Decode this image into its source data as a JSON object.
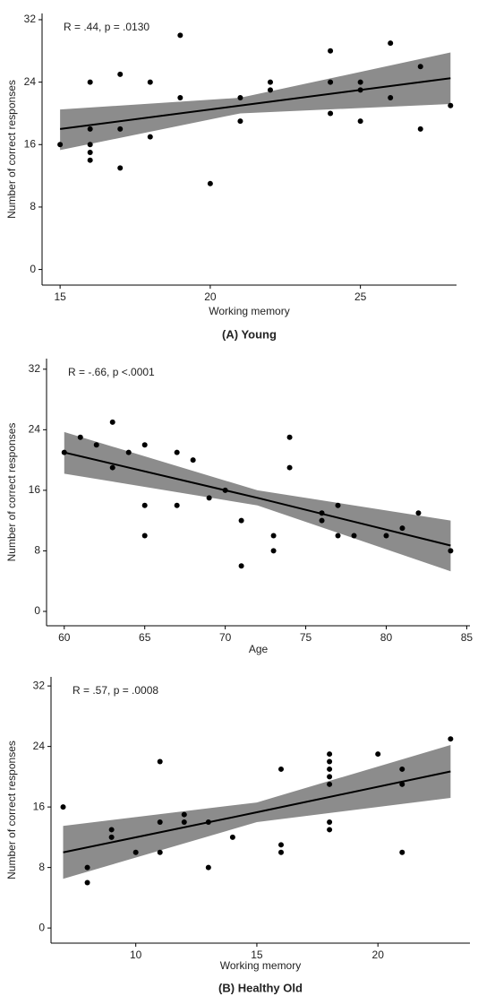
{
  "chart_data": [
    {
      "type": "scatter",
      "annotation": "R = .44, p = .0130",
      "xlabel": "Working memory",
      "ylabel": "Number of correct responses",
      "caption": "(A) Young",
      "xlim": [
        14.4,
        28.2
      ],
      "ylim": [
        -2,
        32.8
      ],
      "xticks": [
        15,
        20,
        25
      ],
      "yticks": [
        0,
        8,
        16,
        24,
        32
      ],
      "color": "#000000",
      "band_color": "#8c8c8c",
      "x": [
        15,
        16,
        16,
        16,
        16,
        16,
        17,
        17,
        17,
        18,
        18,
        19,
        19,
        20,
        21,
        21,
        22,
        22,
        24,
        24,
        24,
        25,
        25,
        25,
        26,
        26,
        27,
        27,
        28
      ],
      "y": [
        16,
        24,
        18,
        16,
        15,
        14,
        25,
        18,
        13,
        24,
        17,
        30,
        22,
        11,
        22,
        19,
        24,
        23,
        28,
        24,
        20,
        24,
        23,
        19,
        29,
        22,
        26,
        18,
        21
      ],
      "fit": {
        "x": [
          15,
          21,
          28
        ],
        "y": [
          18,
          21,
          24.5
        ],
        "lower": [
          15.3,
          20,
          21.2
        ],
        "upper": [
          20.5,
          22,
          27.8
        ]
      }
    },
    {
      "type": "scatter",
      "annotation": "R = -.66, p <.0001",
      "xlabel": "Age",
      "ylabel": "Number of correct responses",
      "xlim": [
        58.9,
        85.2
      ],
      "ylim": [
        -1.9,
        33.4
      ],
      "xticks": [
        60,
        65,
        70,
        75,
        80,
        85
      ],
      "yticks": [
        0,
        8,
        16,
        24,
        32
      ],
      "color": "#000000",
      "band_color": "#8c8c8c",
      "x": [
        60,
        61,
        62,
        63,
        63,
        64,
        65,
        65,
        65,
        67,
        67,
        68,
        69,
        70,
        71,
        71,
        73,
        73,
        74,
        74,
        76,
        76,
        77,
        77,
        78,
        80,
        81,
        82,
        84
      ],
      "y": [
        21,
        23,
        22,
        25,
        19,
        21,
        22,
        14,
        10,
        21,
        14,
        20,
        15,
        16,
        12,
        6,
        10,
        8,
        23,
        19,
        13,
        12,
        14,
        10,
        10,
        10,
        11,
        13,
        8
      ],
      "fit": {
        "x": [
          60,
          72,
          84
        ],
        "y": [
          21,
          15,
          8.7
        ],
        "lower": [
          18.2,
          14,
          5.3
        ],
        "upper": [
          23.7,
          16,
          12
        ]
      }
    },
    {
      "type": "scatter",
      "annotation": "R = .57, p = .0008",
      "xlabel": "Working memory",
      "ylabel": "Number of correct responses",
      "caption": "(B) Healthy Old",
      "xlim": [
        6.5,
        23.8
      ],
      "ylim": [
        -2,
        33.2
      ],
      "xticks": [
        10,
        15,
        20
      ],
      "yticks": [
        0,
        8,
        16,
        24,
        32
      ],
      "color": "#000000",
      "band_color": "#8c8c8c",
      "x": [
        7,
        8,
        8,
        9,
        9,
        10,
        11,
        11,
        11,
        12,
        12,
        13,
        13,
        14,
        16,
        16,
        16,
        18,
        18,
        18,
        18,
        18,
        18,
        18,
        20,
        21,
        21,
        21,
        23
      ],
      "y": [
        16,
        8,
        6,
        13,
        12,
        10,
        22,
        14,
        10,
        15,
        14,
        14,
        8,
        12,
        21,
        11,
        10,
        23,
        22,
        21,
        20,
        19,
        14,
        13,
        23,
        21,
        19,
        10,
        25
      ],
      "fit": {
        "x": [
          7,
          15,
          23
        ],
        "y": [
          10,
          15.3,
          20.7
        ],
        "lower": [
          6.5,
          14,
          17.2
        ],
        "upper": [
          13.5,
          16.6,
          24.2
        ]
      }
    }
  ]
}
